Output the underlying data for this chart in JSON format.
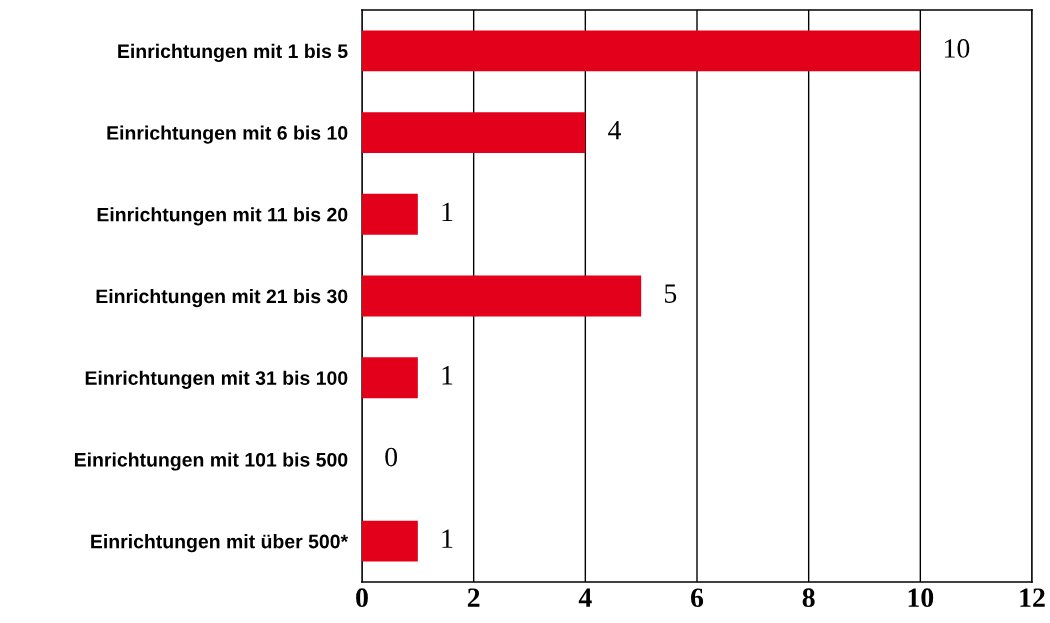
{
  "chart_data": {
    "type": "bar",
    "orientation": "horizontal",
    "categories": [
      "Einrichtungen mit 1 bis 5",
      "Einrichtungen mit 6 bis 10",
      "Einrichtungen mit 11 bis 20",
      "Einrichtungen mit 21 bis 30",
      "Einrichtungen mit 31 bis 100",
      "Einrichtungen mit 101 bis 500",
      "Einrichtungen mit über 500*"
    ],
    "values": [
      10,
      4,
      1,
      5,
      1,
      0,
      1
    ],
    "color": "#e2001a",
    "xlim": [
      0,
      12
    ],
    "xticks": [
      0,
      2,
      4,
      6,
      8,
      10,
      12
    ],
    "grid": "x",
    "data_labels": true
  }
}
